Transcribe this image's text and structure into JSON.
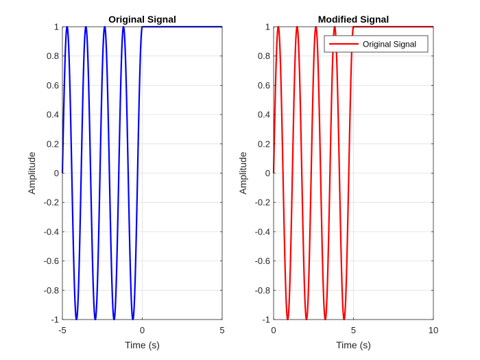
{
  "chart_data": [
    {
      "type": "line",
      "title": "Original Signal",
      "xlabel": "Time (s)",
      "ylabel": "Amplitude",
      "xlim": [
        -5,
        5
      ],
      "ylim": [
        -1,
        1
      ],
      "xticks": [
        "-5",
        "0",
        "5"
      ],
      "yticks": [
        "-1",
        "-0.8",
        "-0.6",
        "-0.4",
        "-0.2",
        "0",
        "0.2",
        "0.4",
        "0.6",
        "0.8",
        "1"
      ],
      "grid": true,
      "legend": null,
      "series": [
        {
          "color": "#0000ff",
          "description_values": "sin(2*pi*0.85*(t+5)) for t < 0, equal to 1 for t >= 0",
          "x_start": -5,
          "x_end": 5,
          "frequency_hz": 0.85,
          "step_at_x": 0
        }
      ]
    },
    {
      "type": "line",
      "title": "Modified Signal",
      "xlabel": "Time (s)",
      "ylabel": "Amplitude",
      "xlim": [
        0,
        10
      ],
      "ylim": [
        -1,
        1
      ],
      "xticks": [
        "0",
        "5",
        "10"
      ],
      "yticks": [
        "-1",
        "-0.8",
        "-0.6",
        "-0.4",
        "-0.2",
        "0",
        "0.2",
        "0.4",
        "0.6",
        "0.8",
        "1"
      ],
      "grid": true,
      "legend": {
        "position": "top-right",
        "entries": [
          "Original Signal"
        ]
      },
      "series": [
        {
          "name": "Original Signal",
          "color": "#ff0000",
          "x_start": 0,
          "x_end": 10,
          "frequency_hz": 0.85,
          "step_at_x": 5
        }
      ]
    }
  ]
}
